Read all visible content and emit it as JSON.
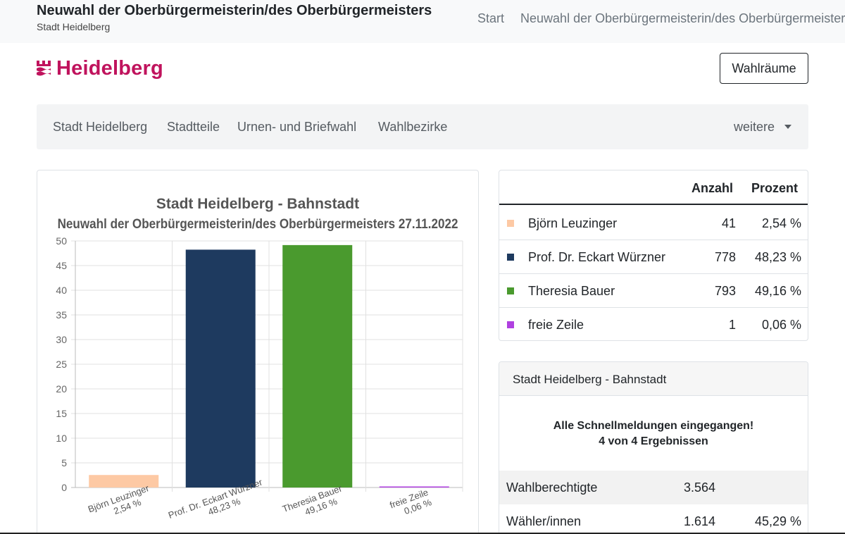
{
  "header": {
    "title": "Neuwahl der Oberbürgermeisterin/des Oberbürgermeisters",
    "subtitle": "Stadt Heidelberg",
    "breadcrumbs": [
      "Start",
      "Neuwahl der Oberbürgermeisterin/des Oberbürgermeisters"
    ]
  },
  "logo": {
    "text": "Heidelberg",
    "color": "#c0135d"
  },
  "wahlraeume_button": "Wahlräume",
  "nav": {
    "items": [
      "Stadt Heidelberg",
      "Stadtteile",
      "Urnen- und Briefwahl",
      "Wahlbezirke"
    ],
    "more": "weitere"
  },
  "chart_data": {
    "type": "bar",
    "title": "Stadt Heidelberg - Bahnstadt",
    "subtitle": "Neuwahl der Oberbürgermeisterin/des Oberbürgermeisters 27.11.2022",
    "categories": [
      "Björn Leuzinger",
      "Prof. Dr. Eckart Würzner",
      "Theresia Bauer",
      "freie Zeile"
    ],
    "value_labels": [
      "2,54 %",
      "48,23 %",
      "49,16 %",
      "0,06 %"
    ],
    "values": [
      2.54,
      48.23,
      49.16,
      0.06
    ],
    "colors": [
      "#fdc9a4",
      "#1e3a5f",
      "#4a9a2e",
      "#b040e0"
    ],
    "ylim": [
      0,
      50
    ],
    "yticks": [
      0,
      5,
      10,
      15,
      20,
      25,
      30,
      35,
      40,
      45,
      50
    ],
    "grid": true,
    "xlabel": "",
    "ylabel": ""
  },
  "results": {
    "headers": {
      "count": "Anzahl",
      "percent": "Prozent"
    },
    "rows": [
      {
        "name": "Björn Leuzinger",
        "count": "41",
        "percent": "2,54 %",
        "color": "#fdc9a4"
      },
      {
        "name": "Prof. Dr. Eckart Würzner",
        "count": "778",
        "percent": "48,23 %",
        "color": "#1e3a5f"
      },
      {
        "name": "Theresia Bauer",
        "count": "793",
        "percent": "49,16 %",
        "color": "#4a9a2e"
      },
      {
        "name": "freie Zeile",
        "count": "1",
        "percent": "0,06 %",
        "color": "#b040e0"
      }
    ]
  },
  "status": {
    "title": "Stadt Heidelberg - Bahnstadt",
    "message_line1": "Alle Schnellmeldungen eingegangen!",
    "message_line2": "4 von 4 Ergebnissen",
    "rows": [
      {
        "label": "Wahlberechtigte",
        "value": "3.564",
        "percent": ""
      },
      {
        "label": "Wähler/innen",
        "value": "1.614",
        "percent": "45,29 %"
      }
    ]
  }
}
